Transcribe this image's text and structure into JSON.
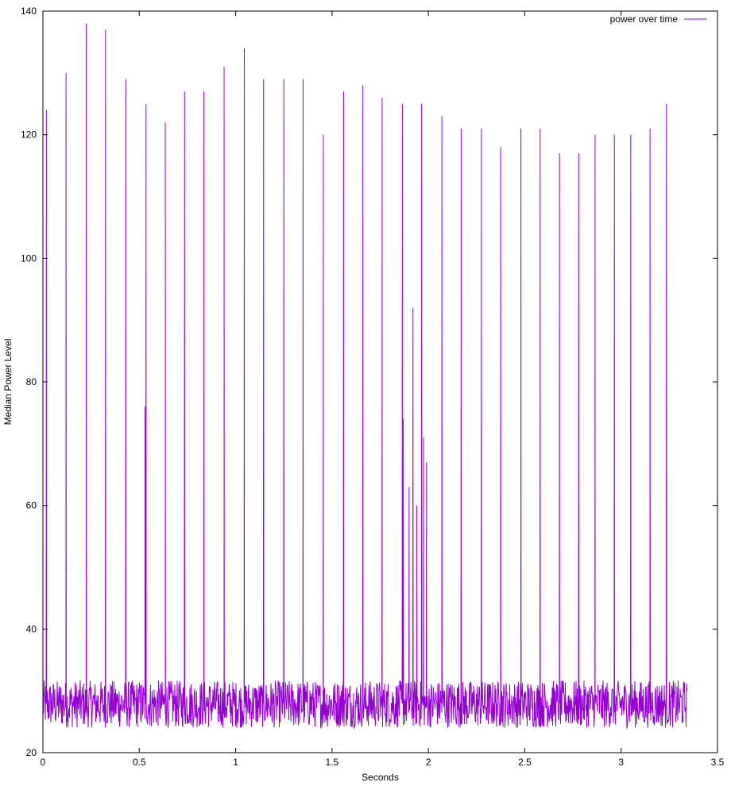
{
  "chart_data": {
    "type": "line",
    "title": "",
    "xlabel": "Seconds",
    "ylabel": "Median Power Level",
    "xlim": [
      0,
      3.5
    ],
    "ylim": [
      20,
      140
    ],
    "x_ticks": [
      0,
      0.5,
      1,
      1.5,
      2,
      2.5,
      3,
      3.5
    ],
    "x_tick_labels": [
      "0",
      "0.5",
      "1",
      "1.5",
      "2",
      "2.5",
      "3",
      "3.5"
    ],
    "y_ticks": [
      20,
      40,
      60,
      80,
      100,
      120,
      140
    ],
    "y_tick_labels": [
      "20",
      "40",
      "60",
      "80",
      "100",
      "120",
      "140"
    ],
    "grid": false,
    "legend_position": "top-right",
    "series": [
      {
        "name": "power over time",
        "color": "#9400D3",
        "x_end": 3.34,
        "baseline_min": 22,
        "baseline_max": 36,
        "peaks": [
          {
            "x": 0.018,
            "y": 124
          },
          {
            "x": 0.12,
            "y": 130
          },
          {
            "x": 0.225,
            "y": 138
          },
          {
            "x": 0.325,
            "y": 137
          },
          {
            "x": 0.43,
            "y": 129
          },
          {
            "x": 0.53,
            "y": 76
          },
          {
            "x": 0.535,
            "y": 125
          },
          {
            "x": 0.635,
            "y": 122
          },
          {
            "x": 0.735,
            "y": 127
          },
          {
            "x": 0.835,
            "y": 127
          },
          {
            "x": 0.94,
            "y": 131
          },
          {
            "x": 1.045,
            "y": 134
          },
          {
            "x": 1.145,
            "y": 129
          },
          {
            "x": 1.25,
            "y": 129
          },
          {
            "x": 1.35,
            "y": 129
          },
          {
            "x": 1.455,
            "y": 120
          },
          {
            "x": 1.56,
            "y": 127
          },
          {
            "x": 1.66,
            "y": 128
          },
          {
            "x": 1.76,
            "y": 126
          },
          {
            "x": 1.865,
            "y": 125
          },
          {
            "x": 1.87,
            "y": 74
          },
          {
            "x": 1.9,
            "y": 63
          },
          {
            "x": 1.92,
            "y": 92
          },
          {
            "x": 1.94,
            "y": 60
          },
          {
            "x": 1.965,
            "y": 125
          },
          {
            "x": 1.975,
            "y": 71
          },
          {
            "x": 1.99,
            "y": 67
          },
          {
            "x": 2.07,
            "y": 123
          },
          {
            "x": 2.17,
            "y": 121
          },
          {
            "x": 2.275,
            "y": 121
          },
          {
            "x": 2.375,
            "y": 118
          },
          {
            "x": 2.48,
            "y": 121
          },
          {
            "x": 2.58,
            "y": 121
          },
          {
            "x": 2.68,
            "y": 117
          },
          {
            "x": 2.78,
            "y": 117
          },
          {
            "x": 2.865,
            "y": 120
          },
          {
            "x": 2.965,
            "y": 120
          },
          {
            "x": 3.05,
            "y": 120
          },
          {
            "x": 3.15,
            "y": 121
          },
          {
            "x": 3.235,
            "y": 125
          }
        ]
      }
    ]
  }
}
